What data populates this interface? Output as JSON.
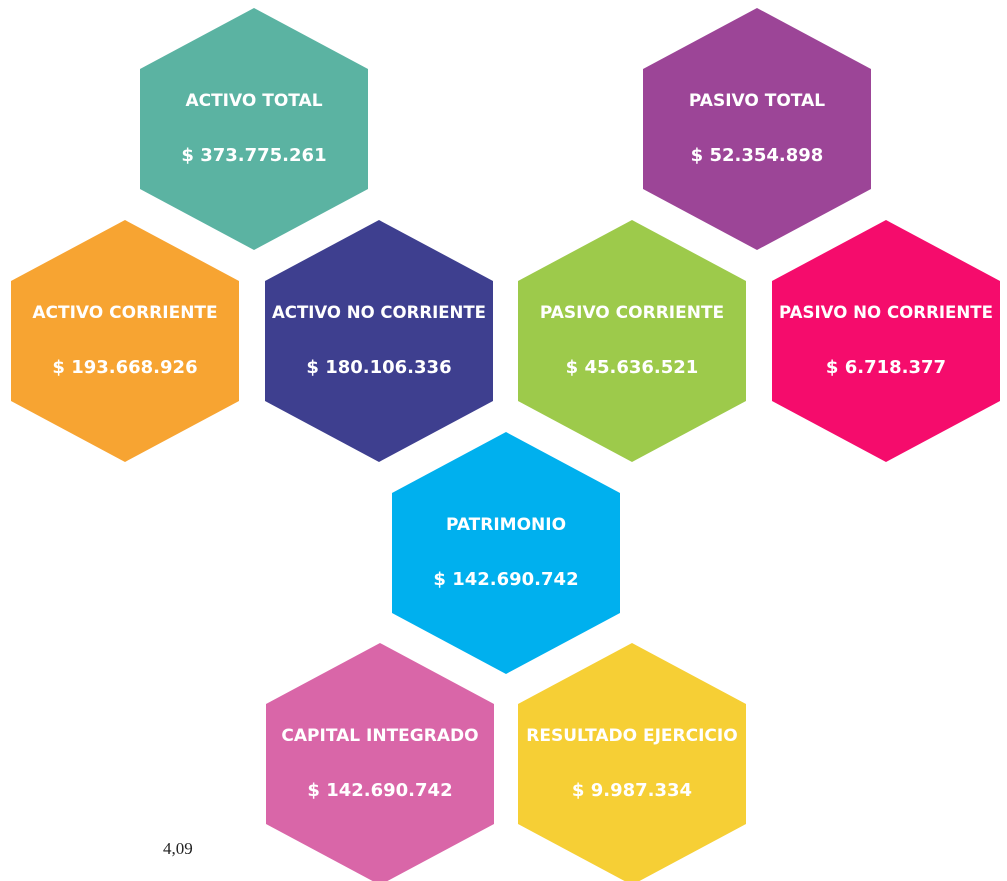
{
  "nodes": [
    {
      "label": "ACTIVO TOTAL",
      "value": "$ 373.775.261",
      "color": "#5bb3a2"
    },
    {
      "label": "PASIVO TOTAL",
      "value": "$ 52.354.898",
      "color": "#9c4597"
    },
    {
      "label": "ACTIVO CORRIENTE",
      "value": "$ 193.668.926",
      "color": "#f7a432"
    },
    {
      "label": "ACTIVO NO CORRIENTE",
      "value": "$ 180.106.336",
      "color": "#3e3f8f"
    },
    {
      "label": "PASIVO CORRIENTE",
      "value": "$ 45.636.521",
      "color": "#9dca4b"
    },
    {
      "label": "PASIVO NO CORRIENTE",
      "value": "$ 6.718.377",
      "color": "#f50c6c"
    },
    {
      "label": "PATRIMONIO",
      "value": "$ 142.690.742",
      "color": "#00b0ee"
    },
    {
      "label": "CAPITAL INTEGRADO",
      "value": "$ 142.690.742",
      "color": "#d966a8"
    },
    {
      "label": "RESULTADO EJERCICIO",
      "value": "$ 9.987.334",
      "color": "#f6cf35"
    }
  ],
  "note": "4,09"
}
